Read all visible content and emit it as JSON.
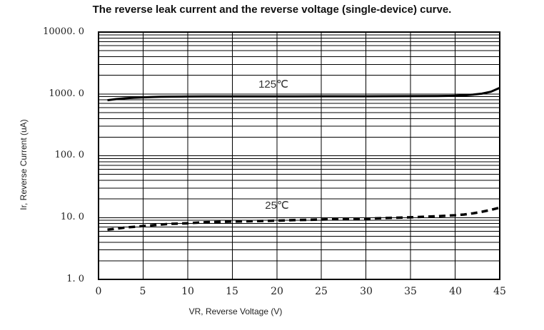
{
  "chart_data": {
    "type": "line",
    "title": "The reverse leak current and the reverse voltage (single-device) curve.",
    "xlabel": "VR, Reverse Voltage (V)",
    "ylabel": "Ir, Reverse Current (uA)",
    "x_scale": "linear",
    "y_scale": "log",
    "xlim": [
      0,
      45
    ],
    "ylim": [
      1,
      10000
    ],
    "x_ticks": [
      0,
      5,
      10,
      15,
      20,
      25,
      30,
      35,
      40,
      45
    ],
    "x_tick_labels": [
      "0",
      "5",
      "10",
      "15",
      "20",
      "25",
      "30",
      "35",
      "40",
      "45"
    ],
    "y_ticks": [
      10000,
      1000,
      100,
      10,
      1
    ],
    "y_tick_labels": [
      "10000. 0",
      "1000. 0",
      "100. 0",
      "10. 0",
      "1. 0"
    ],
    "grid": "on",
    "x_gridline_step": 5,
    "y_minor_gridlines": "log decade multiples 2-9",
    "line_color": "#000000",
    "legend_position": "inline-annotations",
    "series": [
      {
        "name": "125℃",
        "style": "solid",
        "color": "#000000",
        "points": [
          [
            1,
            790
          ],
          [
            2,
            825
          ],
          [
            3,
            850
          ],
          [
            4,
            868
          ],
          [
            5,
            880
          ],
          [
            6,
            890
          ],
          [
            7,
            897
          ],
          [
            8,
            902
          ],
          [
            10,
            907
          ],
          [
            12,
            910
          ],
          [
            15,
            912
          ],
          [
            18,
            913
          ],
          [
            20,
            913
          ],
          [
            22,
            913
          ],
          [
            25,
            914
          ],
          [
            28,
            915
          ],
          [
            30,
            916
          ],
          [
            32,
            917
          ],
          [
            35,
            920
          ],
          [
            38,
            925
          ],
          [
            40,
            935
          ],
          [
            41,
            948
          ],
          [
            42,
            972
          ],
          [
            43,
            1010
          ],
          [
            44,
            1085
          ],
          [
            45,
            1250
          ]
        ]
      },
      {
        "name": "25℃",
        "style": "dashed",
        "color": "#000000",
        "points": [
          [
            1,
            6.4
          ],
          [
            2,
            6.6
          ],
          [
            3,
            6.9
          ],
          [
            4,
            7.1
          ],
          [
            5,
            7.3
          ],
          [
            6,
            7.5
          ],
          [
            7,
            7.7
          ],
          [
            8,
            7.9
          ],
          [
            10,
            8.1
          ],
          [
            12,
            8.4
          ],
          [
            15,
            8.6
          ],
          [
            18,
            8.8
          ],
          [
            20,
            8.9
          ],
          [
            22,
            9.1
          ],
          [
            25,
            9.3
          ],
          [
            28,
            9.5
          ],
          [
            30,
            9.6
          ],
          [
            32,
            9.8
          ],
          [
            35,
            10.1
          ],
          [
            38,
            10.5
          ],
          [
            40,
            10.9
          ],
          [
            41,
            11.2
          ],
          [
            42,
            11.7
          ],
          [
            43,
            12.4
          ],
          [
            44,
            13.3
          ],
          [
            45,
            14.5
          ]
        ]
      }
    ],
    "annotations": [
      {
        "text": "125℃",
        "x": 19.6,
        "y": 1400
      },
      {
        "text": "25℃",
        "x": 20,
        "y": 15
      }
    ]
  }
}
